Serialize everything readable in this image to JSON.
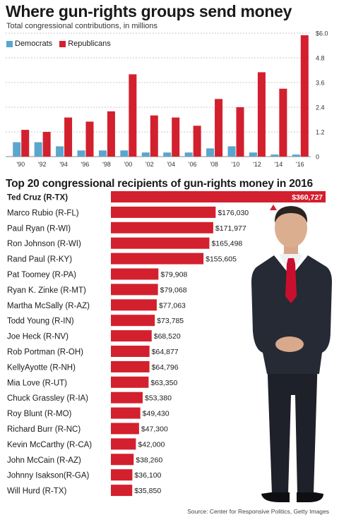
{
  "title": "Where gun-rights groups send money",
  "subtitle": "Total congressional contributions, in millions",
  "legend": {
    "democrats": "Democrats",
    "republicans": "Republicans"
  },
  "colors": {
    "democrats": "#5aa6cf",
    "republicans": "#d3202e",
    "text": "#1a1a1a"
  },
  "chart_data": [
    {
      "type": "bar",
      "title": "Where gun-rights groups send money",
      "subtitle": "Total congressional contributions, in millions",
      "categories": [
        "'90",
        "'92",
        "'94",
        "'96",
        "'98",
        "'00",
        "'02",
        "'04",
        "'06",
        "'08",
        "'10",
        "'12",
        "'14",
        "'16"
      ],
      "series": [
        {
          "name": "Democrats",
          "values": [
            0.7,
            0.7,
            0.5,
            0.3,
            0.3,
            0.3,
            0.2,
            0.2,
            0.2,
            0.4,
            0.5,
            0.2,
            0.1,
            0.1
          ]
        },
        {
          "name": "Republicans",
          "values": [
            1.3,
            1.2,
            1.9,
            1.7,
            2.2,
            4.0,
            2.0,
            1.9,
            1.5,
            2.8,
            2.4,
            4.1,
            3.3,
            5.9
          ]
        }
      ],
      "yticks": [
        "0",
        "1.2",
        "2.4",
        "3.6",
        "4.8",
        "$6.0"
      ],
      "ylim": [
        0,
        6.0
      ],
      "grid": true,
      "legend_position": "top-left"
    },
    {
      "type": "bar",
      "orientation": "horizontal",
      "title": "Top 20 congressional recipients of gun-rights money in 2016",
      "categories": [
        "Ted Cruz (R-TX)",
        "Marco Rubio (R-FL)",
        "Paul Ryan (R-WI)",
        "Ron Johnson (R-WI)",
        "Rand Paul (R-KY)",
        "Pat Toomey (R-PA)",
        "Ryan K. Zinke (R-MT)",
        "Martha McSally (R-AZ)",
        "Todd Young (R-IN)",
        "Joe Heck (R-NV)",
        "Rob Portman (R-OH)",
        "KellyAyotte (R-NH)",
        "Mia Love (R-UT)",
        "Chuck Grassley (R-IA)",
        "Roy Blunt (R-MO)",
        "Richard Burr (R-NC)",
        "Kevin McCarthy (R-CA)",
        "John McCain (R-AZ)",
        "Johnny  Isakson(R-GA)",
        "Will Hurd (R-TX)"
      ],
      "values": [
        360727,
        176030,
        171977,
        165498,
        155605,
        79908,
        79068,
        77063,
        73785,
        68520,
        64877,
        64796,
        63350,
        53380,
        49430,
        47300,
        42000,
        38260,
        36100,
        35850
      ],
      "labels": [
        "$360,727",
        "$176,030",
        "$171,977",
        "$165,498",
        "$155,605",
        "$79,908",
        "$79,068",
        "$77,063",
        "$73,785",
        "$68,520",
        "$64,877",
        "$64,796",
        "$63,350",
        "$53,380",
        "$49,430",
        "$47,300",
        "$42,000",
        "$38,260",
        "$36,100",
        "$35,850"
      ]
    }
  ],
  "photo": {
    "subject": "Ted Cruz portrait",
    "tie_color": "#c8102e",
    "suit_color": "#22252e"
  },
  "source": "Source: Center for Responsive Politics, Getty Images"
}
